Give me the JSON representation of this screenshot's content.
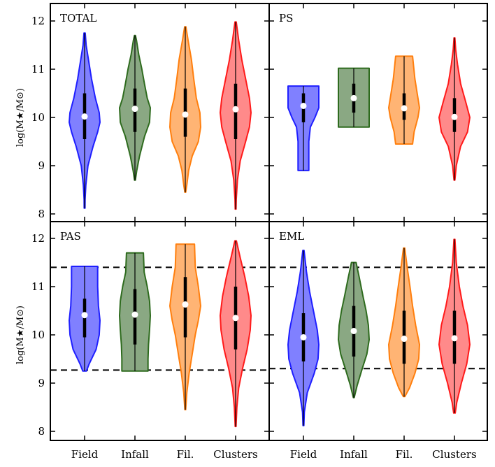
{
  "chart_data": {
    "type": "violin",
    "categories": [
      "Field",
      "Infall",
      "Fil.",
      "Clusters"
    ],
    "category_colors": [
      "#1f1fff",
      "#2e6b1e",
      "#ff7f0e",
      "#ff1a1a"
    ],
    "category_fill_colors": [
      "#8080ff",
      "#8aa883",
      "#ffb474",
      "#ff8a8a"
    ],
    "ylabel": "log(M★/M⊙)",
    "ylim": [
      7.8,
      12.2
    ],
    "yticks": [
      8,
      9,
      10,
      11,
      12
    ],
    "yticklabels": [
      "8",
      "9",
      "10",
      "11",
      "12"
    ],
    "panels": [
      {
        "label": "TOTAL",
        "hlines": [],
        "violins": [
          {
            "category": "Field",
            "min": 8.12,
            "max": 11.75,
            "median": 10.02,
            "q1": 9.55,
            "q3": 10.5,
            "profile": [
              [
                8.12,
                0
              ],
              [
                8.3,
                0.03
              ],
              [
                8.6,
                0.08
              ],
              [
                9.0,
                0.22
              ],
              [
                9.4,
                0.55
              ],
              [
                9.7,
                0.85
              ],
              [
                9.9,
                1.0
              ],
              [
                10.1,
                0.95
              ],
              [
                10.4,
                0.7
              ],
              [
                10.8,
                0.45
              ],
              [
                11.2,
                0.25
              ],
              [
                11.5,
                0.1
              ],
              [
                11.75,
                0.04
              ]
            ]
          },
          {
            "category": "Infall",
            "min": 8.7,
            "max": 11.7,
            "median": 10.18,
            "q1": 9.7,
            "q3": 10.6,
            "profile": [
              [
                8.7,
                0
              ],
              [
                8.9,
                0.12
              ],
              [
                9.2,
                0.3
              ],
              [
                9.6,
                0.62
              ],
              [
                9.9,
                0.95
              ],
              [
                10.2,
                1.0
              ],
              [
                10.4,
                0.8
              ],
              [
                10.7,
                0.62
              ],
              [
                11.0,
                0.45
              ],
              [
                11.3,
                0.25
              ],
              [
                11.6,
                0.1
              ],
              [
                11.7,
                0.03
              ]
            ]
          },
          {
            "category": "Fil.",
            "min": 8.45,
            "max": 11.88,
            "median": 10.06,
            "q1": 9.6,
            "q3": 10.6,
            "profile": [
              [
                8.45,
                0
              ],
              [
                8.6,
                0.1
              ],
              [
                8.9,
                0.22
              ],
              [
                9.2,
                0.45
              ],
              [
                9.5,
                0.85
              ],
              [
                9.8,
                1.0
              ],
              [
                10.1,
                0.95
              ],
              [
                10.4,
                0.72
              ],
              [
                10.8,
                0.55
              ],
              [
                11.2,
                0.4
              ],
              [
                11.6,
                0.18
              ],
              [
                11.88,
                0.04
              ]
            ]
          },
          {
            "category": "Clusters",
            "min": 8.1,
            "max": 11.98,
            "median": 10.17,
            "q1": 9.55,
            "q3": 10.7,
            "profile": [
              [
                8.1,
                0
              ],
              [
                8.3,
                0.04
              ],
              [
                8.7,
                0.12
              ],
              [
                9.1,
                0.3
              ],
              [
                9.5,
                0.65
              ],
              [
                9.8,
                0.9
              ],
              [
                10.1,
                1.0
              ],
              [
                10.4,
                0.9
              ],
              [
                10.8,
                0.65
              ],
              [
                11.2,
                0.4
              ],
              [
                11.6,
                0.2
              ],
              [
                11.98,
                0.04
              ]
            ]
          }
        ]
      },
      {
        "label": "PS",
        "hlines": [],
        "violins": [
          {
            "category": "Field",
            "min": 8.9,
            "max": 10.65,
            "median": 10.24,
            "q1": 9.9,
            "q3": 10.5,
            "profile": [
              [
                8.9,
                0.35
              ],
              [
                9.2,
                0.35
              ],
              [
                9.5,
                0.35
              ],
              [
                9.8,
                0.45
              ],
              [
                10.0,
                0.75
              ],
              [
                10.2,
                1.0
              ],
              [
                10.4,
                1.0
              ],
              [
                10.65,
                1.0
              ]
            ]
          },
          {
            "category": "Infall",
            "min": 9.8,
            "max": 11.02,
            "median": 10.4,
            "q1": 10.1,
            "q3": 10.7,
            "profile": [
              [
                9.8,
                1.0
              ],
              [
                10.1,
                1.0
              ],
              [
                10.4,
                1.0
              ],
              [
                10.7,
                1.0
              ],
              [
                11.02,
                1.0
              ]
            ]
          },
          {
            "category": "Fil.",
            "min": 9.45,
            "max": 11.27,
            "median": 10.19,
            "q1": 9.95,
            "q3": 10.5,
            "profile": [
              [
                9.45,
                0.55
              ],
              [
                9.7,
                0.65
              ],
              [
                10.0,
                0.9
              ],
              [
                10.2,
                1.0
              ],
              [
                10.5,
                0.85
              ],
              [
                10.8,
                0.7
              ],
              [
                11.27,
                0.55
              ]
            ]
          },
          {
            "category": "Clusters",
            "min": 8.7,
            "max": 11.65,
            "median": 10.01,
            "q1": 9.7,
            "q3": 10.4,
            "profile": [
              [
                8.7,
                0
              ],
              [
                9.0,
                0.12
              ],
              [
                9.4,
                0.4
              ],
              [
                9.7,
                0.85
              ],
              [
                10.0,
                1.0
              ],
              [
                10.3,
                0.75
              ],
              [
                10.7,
                0.4
              ],
              [
                11.1,
                0.2
              ],
              [
                11.4,
                0.08
              ],
              [
                11.65,
                0.02
              ]
            ]
          }
        ]
      },
      {
        "label": "PAS",
        "hlines": [
          9.27,
          11.4
        ],
        "violins": [
          {
            "category": "Field",
            "min": 9.25,
            "max": 11.42,
            "median": 10.41,
            "q1": 9.95,
            "q3": 10.75,
            "profile": [
              [
                9.25,
                0.12
              ],
              [
                9.4,
                0.3
              ],
              [
                9.7,
                0.75
              ],
              [
                10.0,
                0.95
              ],
              [
                10.3,
                1.0
              ],
              [
                10.6,
                0.9
              ],
              [
                11.0,
                0.85
              ],
              [
                11.42,
                0.85
              ]
            ]
          },
          {
            "category": "Infall",
            "min": 9.25,
            "max": 11.7,
            "median": 10.42,
            "q1": 9.8,
            "q3": 10.95,
            "profile": [
              [
                9.25,
                0.85
              ],
              [
                9.5,
                0.85
              ],
              [
                9.8,
                0.88
              ],
              [
                10.1,
                0.95
              ],
              [
                10.4,
                1.0
              ],
              [
                10.7,
                0.95
              ],
              [
                11.0,
                0.8
              ],
              [
                11.3,
                0.6
              ],
              [
                11.7,
                0.55
              ]
            ]
          },
          {
            "category": "Fil.",
            "min": 8.45,
            "max": 11.88,
            "median": 10.63,
            "q1": 9.95,
            "q3": 11.2,
            "profile": [
              [
                8.45,
                0
              ],
              [
                8.8,
                0.1
              ],
              [
                9.2,
                0.25
              ],
              [
                9.6,
                0.45
              ],
              [
                10.0,
                0.65
              ],
              [
                10.3,
                0.85
              ],
              [
                10.6,
                1.0
              ],
              [
                11.0,
                0.85
              ],
              [
                11.4,
                0.65
              ],
              [
                11.88,
                0.6
              ]
            ]
          },
          {
            "category": "Clusters",
            "min": 8.1,
            "max": 11.95,
            "median": 10.35,
            "q1": 9.7,
            "q3": 11.0,
            "profile": [
              [
                8.1,
                0
              ],
              [
                8.5,
                0.08
              ],
              [
                8.9,
                0.2
              ],
              [
                9.3,
                0.45
              ],
              [
                9.7,
                0.75
              ],
              [
                10.1,
                0.95
              ],
              [
                10.4,
                1.0
              ],
              [
                10.8,
                0.85
              ],
              [
                11.2,
                0.6
              ],
              [
                11.6,
                0.3
              ],
              [
                11.95,
                0.05
              ]
            ]
          }
        ]
      },
      {
        "label": "EML",
        "hlines": [
          9.3,
          11.4
        ],
        "violins": [
          {
            "category": "Field",
            "min": 8.12,
            "max": 11.75,
            "median": 9.95,
            "q1": 9.45,
            "q3": 10.45,
            "profile": [
              [
                8.12,
                0
              ],
              [
                8.4,
                0.06
              ],
              [
                8.8,
                0.25
              ],
              [
                9.2,
                0.7
              ],
              [
                9.5,
                0.95
              ],
              [
                9.8,
                1.0
              ],
              [
                10.1,
                0.9
              ],
              [
                10.5,
                0.65
              ],
              [
                10.9,
                0.4
              ],
              [
                11.3,
                0.2
              ],
              [
                11.75,
                0.04
              ]
            ]
          },
          {
            "category": "Infall",
            "min": 8.7,
            "max": 11.5,
            "median": 10.08,
            "q1": 9.55,
            "q3": 10.6,
            "profile": [
              [
                8.7,
                0
              ],
              [
                8.95,
                0.22
              ],
              [
                9.3,
                0.55
              ],
              [
                9.6,
                0.85
              ],
              [
                9.9,
                1.0
              ],
              [
                10.2,
                0.95
              ],
              [
                10.5,
                0.8
              ],
              [
                10.8,
                0.6
              ],
              [
                11.2,
                0.35
              ],
              [
                11.5,
                0.15
              ]
            ]
          },
          {
            "category": "Fil.",
            "min": 8.72,
            "max": 11.8,
            "median": 9.92,
            "q1": 9.4,
            "q3": 10.5,
            "profile": [
              [
                8.72,
                0.05
              ],
              [
                8.9,
                0.35
              ],
              [
                9.2,
                0.7
              ],
              [
                9.5,
                0.95
              ],
              [
                9.8,
                1.0
              ],
              [
                10.2,
                0.75
              ],
              [
                10.6,
                0.55
              ],
              [
                11.0,
                0.38
              ],
              [
                11.4,
                0.2
              ],
              [
                11.8,
                0.04
              ]
            ]
          },
          {
            "category": "Clusters",
            "min": 8.38,
            "max": 11.98,
            "median": 9.93,
            "q1": 9.4,
            "q3": 10.5,
            "profile": [
              [
                8.38,
                0.05
              ],
              [
                8.6,
                0.15
              ],
              [
                9.0,
                0.45
              ],
              [
                9.4,
                0.8
              ],
              [
                9.8,
                1.0
              ],
              [
                10.2,
                0.85
              ],
              [
                10.6,
                0.55
              ],
              [
                11.0,
                0.32
              ],
              [
                11.5,
                0.12
              ],
              [
                11.98,
                0.03
              ]
            ]
          }
        ]
      }
    ]
  }
}
